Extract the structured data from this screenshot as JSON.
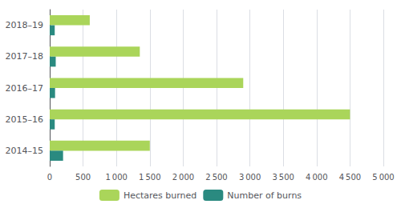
{
  "chart_data": {
    "type": "bar",
    "orientation": "horizontal",
    "categories": [
      "2018–19",
      "2017–18",
      "2016–17",
      "2015–16",
      "2014–15"
    ],
    "series": [
      {
        "name": "Hectares burned",
        "color": "#aad55a",
        "values": [
          600,
          1350,
          2900,
          4500,
          1500
        ]
      },
      {
        "name": "Number of burns",
        "color": "#2a8a80",
        "values": [
          75,
          90,
          80,
          75,
          200
        ]
      }
    ],
    "xlim": [
      0,
      5000
    ],
    "xticks": [
      0,
      500,
      {
        "value": 1000,
        "label": "1 000"
      },
      {
        "value": 1500,
        "label": "1 500"
      },
      {
        "value": 2000,
        "label": "2 000"
      },
      {
        "value": 2500,
        "label": "2 500"
      },
      {
        "value": 3000,
        "label": "3 000"
      },
      {
        "value": 3500,
        "label": "3 500"
      },
      {
        "value": 4000,
        "label": "4 000"
      },
      {
        "value": 4500,
        "label": "4 500"
      },
      {
        "value": 5000,
        "label": "5 000"
      }
    ],
    "grid": true,
    "legend": "bottom"
  }
}
